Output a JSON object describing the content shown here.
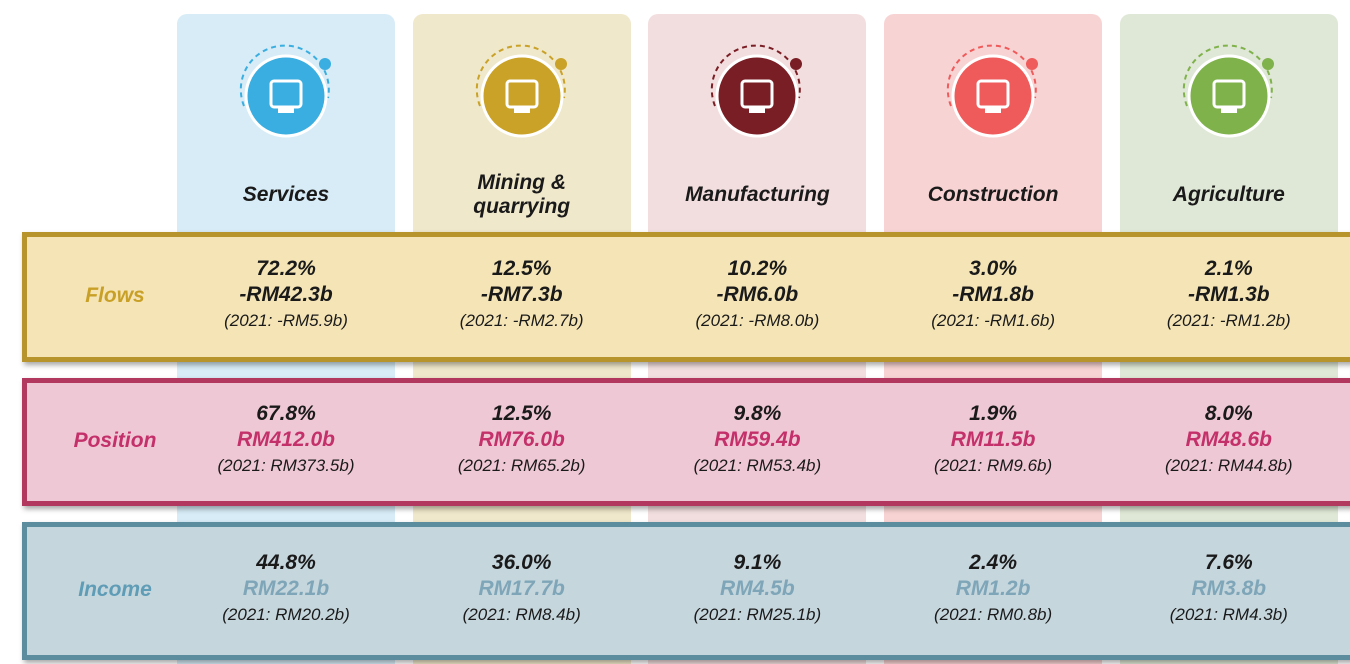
{
  "columns": [
    {
      "name": "Services",
      "color": "#3aaee0",
      "background": "#d7ecf7"
    },
    {
      "name": "Mining & quarrying",
      "color": "#c9a227",
      "background": "#f0e8cb"
    },
    {
      "name": "Manufacturing",
      "color": "#7a1e26",
      "background": "#f2dede"
    },
    {
      "name": "Construction",
      "color": "#ef5b5b",
      "background": "#f8d3d3"
    },
    {
      "name": "Agriculture",
      "color": "#80b24c",
      "background": "#dfe8d6"
    }
  ],
  "rows": [
    {
      "label": "Flows",
      "label_color": "#c9a027",
      "amount_color": "#1a1a1a",
      "border": "#b8952c",
      "fill": "#f5e5b6",
      "cells": [
        {
          "share": "72.2%",
          "amount": "-RM42.3b",
          "previous": "(2021: -RM5.9b)"
        },
        {
          "share": "12.5%",
          "amount": "-RM7.3b",
          "previous": "(2021: -RM2.7b)"
        },
        {
          "share": "10.2%",
          "amount": "-RM6.0b",
          "previous": "(2021: -RM8.0b)"
        },
        {
          "share": "3.0%",
          "amount": "-RM1.8b",
          "previous": "(2021: -RM1.6b)"
        },
        {
          "share": "2.1%",
          "amount": "-RM1.3b",
          "previous": "(2021: -RM1.2b)"
        }
      ]
    },
    {
      "label": "Position",
      "label_color": "#c3306a",
      "amount_color": "#c3306a",
      "border": "#b2385f",
      "fill": "#efc8d5",
      "cells": [
        {
          "share": "67.8%",
          "amount": "RM412.0b",
          "previous": "(2021: RM373.5b)"
        },
        {
          "share": "12.5%",
          "amount": "RM76.0b",
          "previous": "(2021: RM65.2b)"
        },
        {
          "share": "9.8%",
          "amount": "RM59.4b",
          "previous": "(2021: RM53.4b)"
        },
        {
          "share": "1.9%",
          "amount": "RM11.5b",
          "previous": "(2021: RM9.6b)"
        },
        {
          "share": "8.0%",
          "amount": "RM48.6b",
          "previous": "(2021: RM44.8b)"
        }
      ]
    },
    {
      "label": "Income",
      "label_color": "#5f9cb6",
      "amount_color": "#7ea6b8",
      "border": "#5b8d9f",
      "fill": "#c6d6dd",
      "cells": [
        {
          "share": "44.8%",
          "amount": "RM22.1b",
          "previous": "(2021: RM20.2b)"
        },
        {
          "share": "36.0%",
          "amount": "RM17.7b",
          "previous": "(2021: RM8.4b)"
        },
        {
          "share": "9.1%",
          "amount": "RM4.5b",
          "previous": "(2021: RM25.1b)"
        },
        {
          "share": "2.4%",
          "amount": "RM1.2b",
          "previous": "(2021: RM0.8b)"
        },
        {
          "share": "7.6%",
          "amount": "RM3.8b",
          "previous": "(2021: RM4.3b)"
        }
      ]
    }
  ]
}
